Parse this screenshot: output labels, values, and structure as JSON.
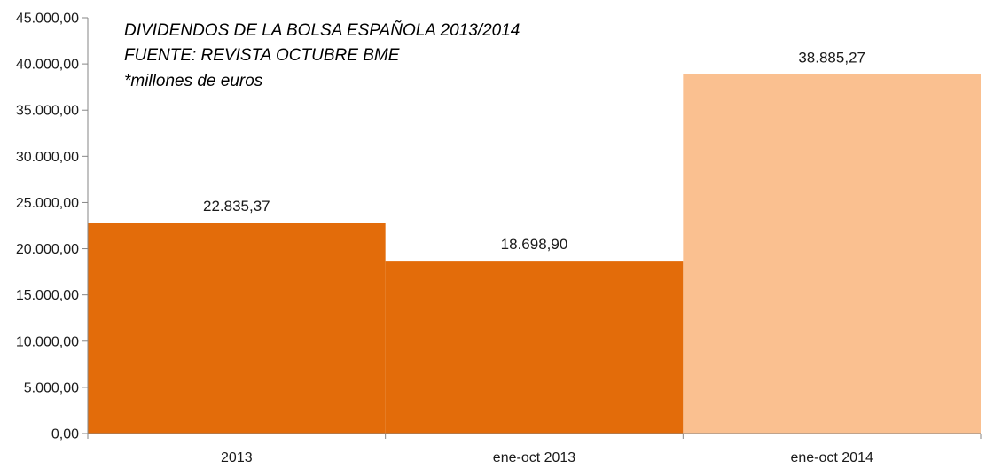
{
  "chart_data": {
    "type": "bar",
    "title_lines": [
      "DIVIDENDOS DE LA BOLSA ESPAÑOLA 2013/2014",
      "FUENTE: REVISTA OCTUBRE BME",
      "*millones de euros"
    ],
    "categories": [
      "2013",
      "ene-oct 2013",
      "ene-oct 2014"
    ],
    "values": [
      22835.37,
      18698.9,
      38885.27
    ],
    "value_labels": [
      "22.835,37",
      "18.698,90",
      "38.885,27"
    ],
    "bar_colors": [
      "#e36c0a",
      "#e36c0a",
      "#fac090"
    ],
    "ylim": [
      0,
      45000
    ],
    "y_ticks": [
      0,
      5000,
      10000,
      15000,
      20000,
      25000,
      30000,
      35000,
      40000,
      45000
    ],
    "y_tick_labels": [
      "0,00",
      "5.000,00",
      "10.000,00",
      "15.000,00",
      "20.000,00",
      "25.000,00",
      "30.000,00",
      "35.000,00",
      "40.000,00",
      "45.000,00"
    ],
    "grid": false,
    "xlabel": "",
    "ylabel": ""
  }
}
